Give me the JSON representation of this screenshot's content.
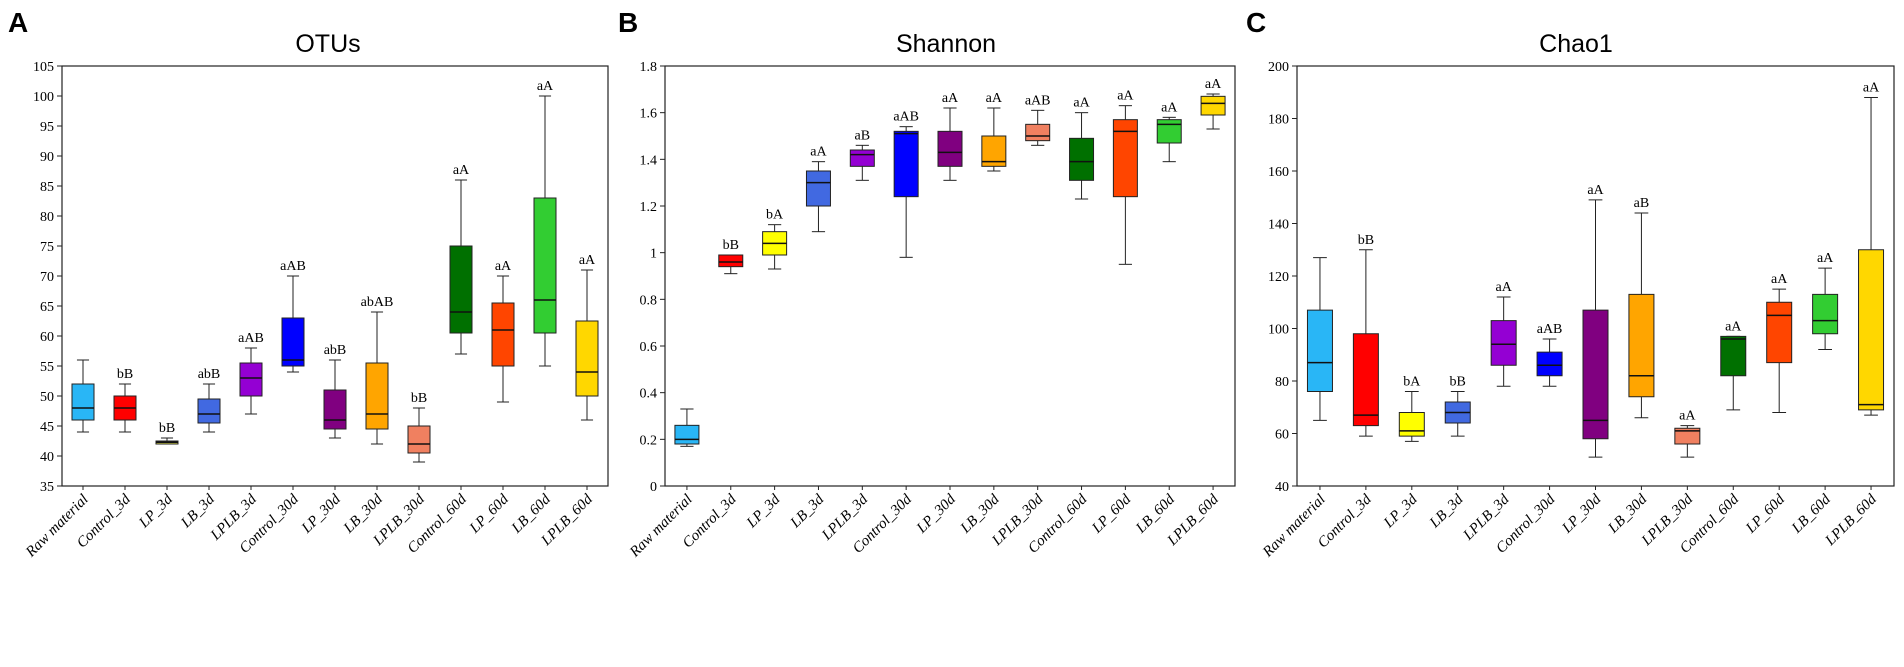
{
  "figure": {
    "panel_letters": [
      "A",
      "B",
      "C"
    ]
  },
  "chart_data": [
    {
      "panel": "A",
      "type": "box",
      "title": "OTUs",
      "xlabel": "",
      "ylabel": "",
      "ylim": [
        35,
        105
      ],
      "yticks": [
        35,
        40,
        45,
        50,
        55,
        60,
        65,
        70,
        75,
        80,
        85,
        90,
        95,
        100,
        105
      ],
      "ytick_labels": [
        "35",
        "40",
        "45",
        "50",
        "55",
        "60",
        "65",
        "70",
        "75",
        "80",
        "85",
        "90",
        "95",
        "100",
        "105"
      ],
      "categories": [
        "Raw material",
        "Control_3d",
        "LP_3d",
        "LB_3d",
        "LPLB_3d",
        "Control_30d",
        "LP_30d",
        "LB_30d",
        "LPLB_30d",
        "Control_60d",
        "LP_60d",
        "LB_60d",
        "LPLB_60d"
      ],
      "colors": [
        "#29b6f6",
        "#ff0000",
        "#e8e84a",
        "#4169e1",
        "#9400d3",
        "#0000ff",
        "#800080",
        "#ffa500",
        "#f08060",
        "#007000",
        "#ff4500",
        "#32cd32",
        "#ffd700"
      ],
      "boxes": [
        {
          "min": 44,
          "q1": 46,
          "median": 48,
          "q3": 52,
          "max": 56
        },
        {
          "min": 44,
          "q1": 46,
          "median": 48,
          "q3": 50,
          "max": 52
        },
        {
          "min": 42,
          "q1": 42,
          "median": 42.3,
          "q3": 42.5,
          "max": 43
        },
        {
          "min": 44,
          "q1": 45.5,
          "median": 47,
          "q3": 49.5,
          "max": 52
        },
        {
          "min": 47,
          "q1": 50,
          "median": 53,
          "q3": 55.5,
          "max": 58
        },
        {
          "min": 54,
          "q1": 55,
          "median": 56,
          "q3": 63,
          "max": 70
        },
        {
          "min": 43,
          "q1": 44.5,
          "median": 46,
          "q3": 51,
          "max": 56
        },
        {
          "min": 42,
          "q1": 44.5,
          "median": 47,
          "q3": 55.5,
          "max": 64
        },
        {
          "min": 39,
          "q1": 40.5,
          "median": 42,
          "q3": 45,
          "max": 48
        },
        {
          "min": 57,
          "q1": 60.5,
          "median": 64,
          "q3": 75,
          "max": 86
        },
        {
          "min": 49,
          "q1": 55,
          "median": 61,
          "q3": 65.5,
          "max": 70
        },
        {
          "min": 55,
          "q1": 60.5,
          "median": 66,
          "q3": 83,
          "max": 100
        },
        {
          "min": 46,
          "q1": 50,
          "median": 54,
          "q3": 62.5,
          "max": 71
        }
      ],
      "annotations": [
        "",
        "bB",
        "bB",
        "abB",
        "aAB",
        "aAB",
        "abB",
        "abAB",
        "bB",
        "aA",
        "aA",
        "aA",
        "aA"
      ]
    },
    {
      "panel": "B",
      "type": "box",
      "title": "Shannon",
      "xlabel": "",
      "ylabel": "",
      "ylim": [
        0,
        1.8
      ],
      "yticks": [
        0,
        0.2,
        0.4,
        0.6,
        0.8,
        1.0,
        1.2,
        1.4,
        1.6,
        1.8
      ],
      "ytick_labels": [
        "0",
        "0.2",
        "0.4",
        "0.6",
        "0.8",
        "1",
        "1.2",
        "1.4",
        "1.6",
        "1.8"
      ],
      "categories": [
        "Raw material",
        "Control_3d",
        "LP_3d",
        "LB_3d",
        "LPLB_3d",
        "Control_30d",
        "LP_30d",
        "LB_30d",
        "LPLB_30d",
        "Control_60d",
        "LP_60d",
        "LB_60d",
        "LPLB_60d"
      ],
      "colors": [
        "#29b6f6",
        "#ff0000",
        "#ffff00",
        "#4169e1",
        "#9400d3",
        "#0000ff",
        "#800080",
        "#ffa500",
        "#f08060",
        "#007000",
        "#ff4500",
        "#32cd32",
        "#ffd700"
      ],
      "boxes": [
        {
          "min": 0.17,
          "q1": 0.18,
          "median": 0.2,
          "q3": 0.26,
          "max": 0.33
        },
        {
          "min": 0.91,
          "q1": 0.94,
          "median": 0.96,
          "q3": 0.99,
          "max": 0.99
        },
        {
          "min": 0.93,
          "q1": 0.99,
          "median": 1.04,
          "q3": 1.09,
          "max": 1.12
        },
        {
          "min": 1.09,
          "q1": 1.2,
          "median": 1.3,
          "q3": 1.35,
          "max": 1.39
        },
        {
          "min": 1.31,
          "q1": 1.37,
          "median": 1.42,
          "q3": 1.44,
          "max": 1.46
        },
        {
          "min": 0.98,
          "q1": 1.24,
          "median": 1.51,
          "q3": 1.52,
          "max": 1.54
        },
        {
          "min": 1.31,
          "q1": 1.37,
          "median": 1.43,
          "q3": 1.52,
          "max": 1.62
        },
        {
          "min": 1.35,
          "q1": 1.37,
          "median": 1.39,
          "q3": 1.5,
          "max": 1.62
        },
        {
          "min": 1.46,
          "q1": 1.48,
          "median": 1.5,
          "q3": 1.55,
          "max": 1.61
        },
        {
          "min": 1.23,
          "q1": 1.31,
          "median": 1.39,
          "q3": 1.49,
          "max": 1.6
        },
        {
          "min": 0.95,
          "q1": 1.24,
          "median": 1.52,
          "q3": 1.57,
          "max": 1.63
        },
        {
          "min": 1.39,
          "q1": 1.47,
          "median": 1.55,
          "q3": 1.57,
          "max": 1.58
        },
        {
          "min": 1.53,
          "q1": 1.59,
          "median": 1.64,
          "q3": 1.67,
          "max": 1.68
        }
      ],
      "annotations": [
        "",
        "bB",
        "bA",
        "aA",
        "aB",
        "aAB",
        "aA",
        "aA",
        "aAB",
        "aA",
        "aA",
        "aA",
        "aA"
      ]
    },
    {
      "panel": "C",
      "type": "box",
      "title": "Chao1",
      "xlabel": "",
      "ylabel": "",
      "ylim": [
        40,
        200
      ],
      "yticks": [
        40,
        60,
        80,
        100,
        120,
        140,
        160,
        180,
        200
      ],
      "ytick_labels": [
        "40",
        "60",
        "80",
        "100",
        "120",
        "140",
        "160",
        "180",
        "200"
      ],
      "categories": [
        "Raw material",
        "Control_3d",
        "LP_3d",
        "LB_3d",
        "LPLB_3d",
        "Control_30d",
        "LP_30d",
        "LB_30d",
        "LPLB_30d",
        "Control_60d",
        "LP_60d",
        "LB_60d",
        "LPLB_60d"
      ],
      "colors": [
        "#29b6f6",
        "#ff0000",
        "#ffff00",
        "#4169e1",
        "#9400d3",
        "#0000ff",
        "#800080",
        "#ffa500",
        "#f08060",
        "#007000",
        "#ff4500",
        "#32cd32",
        "#ffd700"
      ],
      "boxes": [
        {
          "min": 65,
          "q1": 76,
          "median": 87,
          "q3": 107,
          "max": 127
        },
        {
          "min": 59,
          "q1": 63,
          "median": 67,
          "q3": 98,
          "max": 130
        },
        {
          "min": 57,
          "q1": 59,
          "median": 61,
          "q3": 68,
          "max": 76
        },
        {
          "min": 59,
          "q1": 64,
          "median": 68,
          "q3": 72,
          "max": 76
        },
        {
          "min": 78,
          "q1": 86,
          "median": 94,
          "q3": 103,
          "max": 112
        },
        {
          "min": 78,
          "q1": 82,
          "median": 86,
          "q3": 91,
          "max": 96
        },
        {
          "min": 51,
          "q1": 58,
          "median": 65,
          "q3": 107,
          "max": 149
        },
        {
          "min": 66,
          "q1": 74,
          "median": 82,
          "q3": 113,
          "max": 144
        },
        {
          "min": 51,
          "q1": 56,
          "median": 61,
          "q3": 62,
          "max": 63
        },
        {
          "min": 69,
          "q1": 82,
          "median": 96,
          "q3": 97,
          "max": 97
        },
        {
          "min": 68,
          "q1": 87,
          "median": 105,
          "q3": 110,
          "max": 115
        },
        {
          "min": 92,
          "q1": 98,
          "median": 103,
          "q3": 113,
          "max": 123
        },
        {
          "min": 67,
          "q1": 69,
          "median": 71,
          "q3": 130,
          "max": 188
        }
      ],
      "annotations": [
        "",
        "bB",
        "bA",
        "bB",
        "aA",
        "aAB",
        "aA",
        "aB",
        "aA",
        "aA",
        "aA",
        "aA",
        "aA"
      ]
    }
  ]
}
